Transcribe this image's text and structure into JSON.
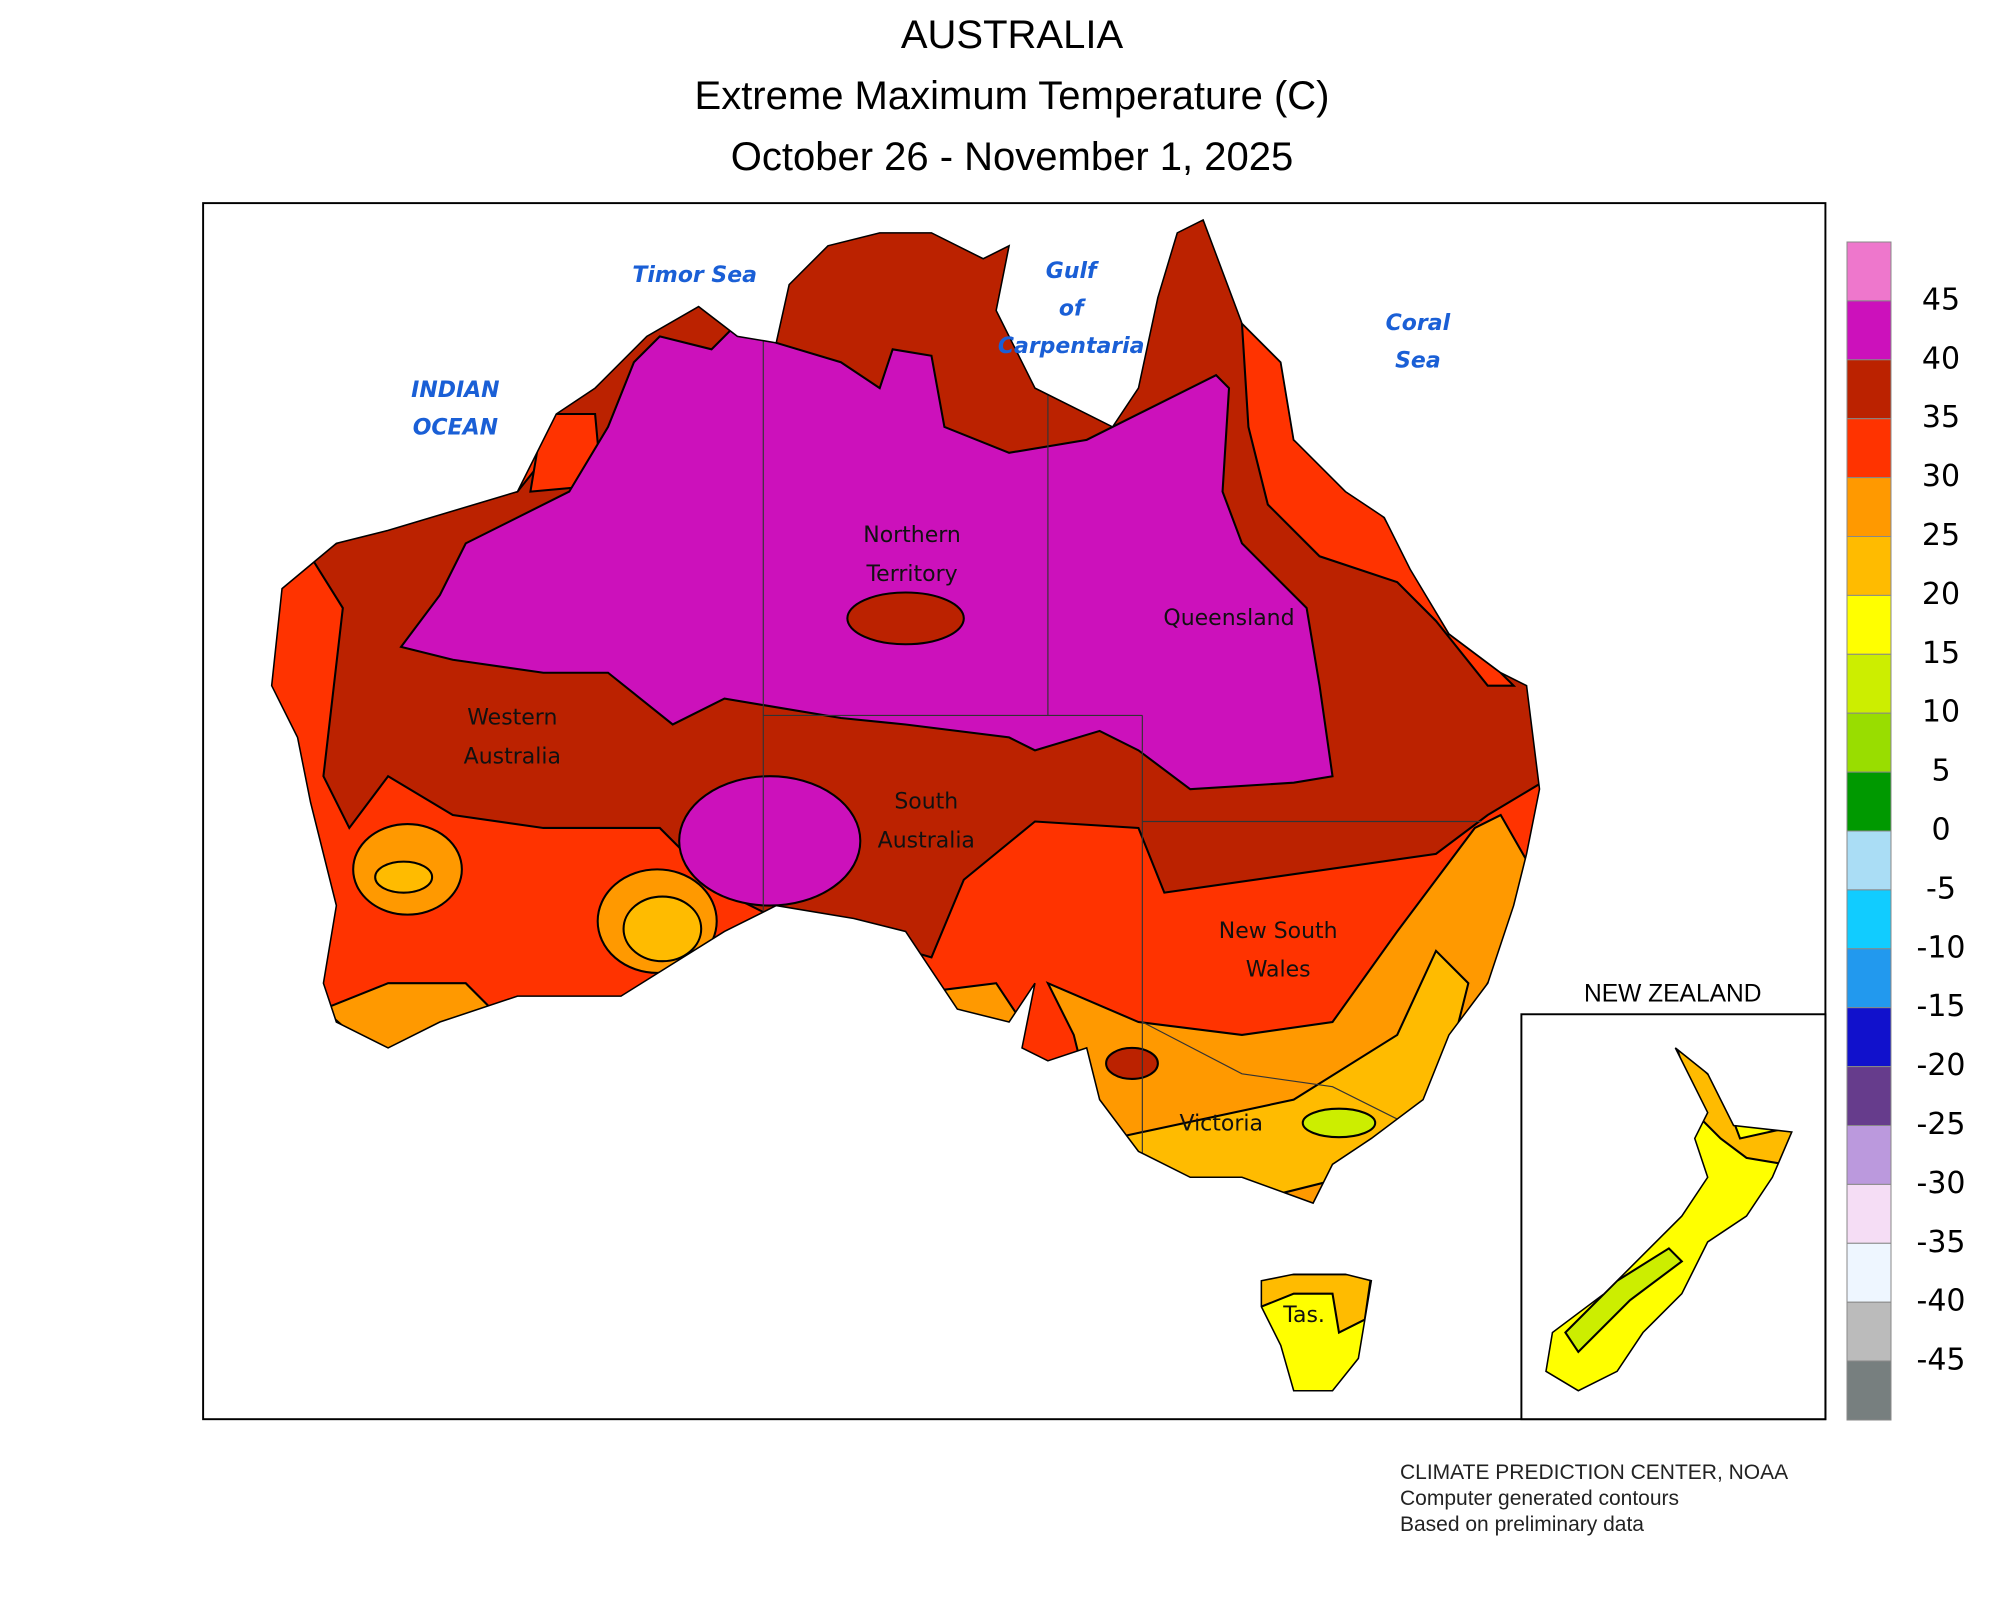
{
  "header": {
    "title": "AUSTRALIA",
    "subtitle": "Extreme Maximum Temperature (C)",
    "date_range": "October 26 - November 1, 2025"
  },
  "map": {
    "water_labels": [
      {
        "lines": [
          "Timor Sea"
        ]
      },
      {
        "lines": [
          "Gulf",
          "of",
          "Carpentaria"
        ]
      },
      {
        "lines": [
          "Coral",
          "Sea"
        ]
      },
      {
        "lines": [
          "INDIAN",
          "OCEAN"
        ]
      }
    ],
    "state_labels": [
      {
        "lines": [
          "Northern",
          "Territory"
        ]
      },
      {
        "lines": [
          "Queensland"
        ]
      },
      {
        "lines": [
          "Western",
          "Australia"
        ]
      },
      {
        "lines": [
          "South",
          "Australia"
        ]
      },
      {
        "lines": [
          "New South",
          "Wales"
        ]
      },
      {
        "lines": [
          "Victoria"
        ]
      },
      {
        "lines": [
          "Tas."
        ]
      }
    ],
    "inset_title": "NEW ZEALAND"
  },
  "legend": {
    "colors": [
      "#ee77cc",
      "#cc11bb",
      "#bb2200",
      "#ff3300",
      "#ff9900",
      "#ffbb00",
      "#ffff00",
      "#ccee00",
      "#99dd00",
      "#009900",
      "#aaddf5",
      "#11ccff",
      "#2299ee",
      "#1111cc",
      "#663c8c",
      "#bb99dd",
      "#f5ddf5",
      "#eef6ff",
      "#bbbbbb",
      "#777f7f"
    ],
    "labels": [
      45,
      40,
      35,
      30,
      25,
      20,
      15,
      10,
      5,
      0,
      -5,
      -10,
      -15,
      -20,
      -25,
      -30,
      -35,
      -40,
      -45
    ]
  },
  "footer": {
    "lines": [
      "CLIMATE PREDICTION CENTER, NOAA",
      "Computer generated contours",
      "Based on preliminary data"
    ]
  }
}
